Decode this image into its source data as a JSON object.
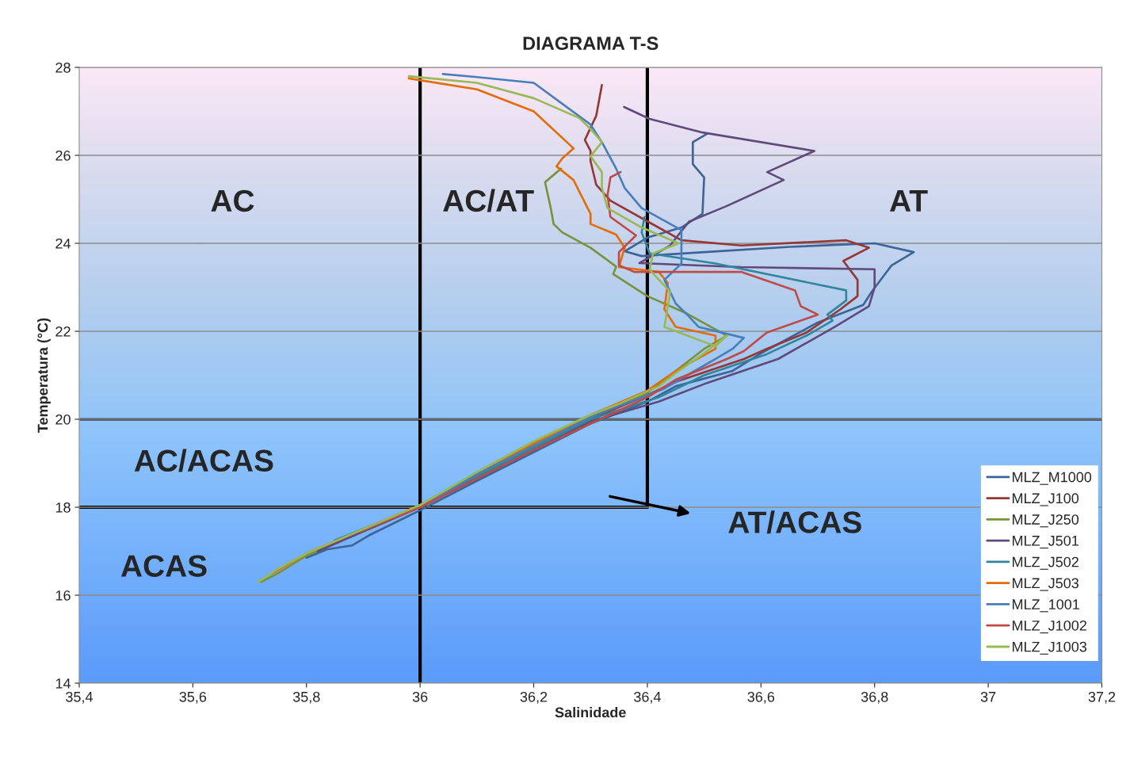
{
  "chart_data": {
    "type": "line",
    "title": "DIAGRAMA T-S",
    "xlabel": "Salinidade",
    "ylabel": "Temperatura (°C)",
    "xlim": [
      35.4,
      37.2
    ],
    "ylim": [
      14,
      28
    ],
    "xticks": [
      {
        "value": 35.4,
        "label": "35,4"
      },
      {
        "value": 35.6,
        "label": "35,6"
      },
      {
        "value": 35.8,
        "label": "35,8"
      },
      {
        "value": 36,
        "label": "36"
      },
      {
        "value": 36.2,
        "label": "36,2"
      },
      {
        "value": 36.4,
        "label": "36,4"
      },
      {
        "value": 36.6,
        "label": "36,6"
      },
      {
        "value": 36.8,
        "label": "36,8"
      },
      {
        "value": 37,
        "label": "37"
      },
      {
        "value": 37.2,
        "label": "37,2"
      }
    ],
    "yticks": [
      14,
      16,
      18,
      20,
      22,
      24,
      26,
      28
    ],
    "grid": "y",
    "legend": "lower right",
    "series": [
      {
        "name": "MLZ_M1000",
        "color": "#3c6496",
        "x": [
          36.505,
          36.48,
          36.48,
          36.5,
          36.497,
          36.46,
          36.4,
          36.36,
          36.39,
          36.5,
          36.65,
          36.8,
          36.869,
          36.83,
          36.795,
          36.78,
          36.7,
          36.6,
          36.55,
          36.45,
          36.4,
          36.3,
          36.2,
          36.1,
          36.0,
          35.91,
          35.88,
          35.836,
          35.8
        ],
        "values": [
          26.49,
          26.3,
          25.8,
          25.5,
          24.67,
          24.36,
          24.13,
          23.82,
          23.71,
          23.8,
          23.92,
          24.0,
          23.8,
          23.5,
          22.9,
          22.6,
          22.2,
          21.5,
          21.1,
          20.75,
          20.4,
          19.9,
          19.25,
          18.6,
          17.93,
          17.36,
          17.13,
          17.04,
          16.85
        ]
      },
      {
        "name": "MLZ_J100",
        "color": "#953735",
        "x": [
          36.32,
          36.31,
          36.29,
          36.3,
          36.3,
          36.31,
          36.335,
          36.4,
          36.46,
          36.565,
          36.75,
          36.79,
          36.745,
          36.77,
          36.77,
          36.74,
          36.68,
          36.61,
          36.57,
          36.45,
          36.4,
          36.3,
          36.2,
          36.1,
          36.0,
          35.9,
          35.83
        ],
        "values": [
          27.6,
          26.9,
          26.35,
          26.1,
          25.87,
          25.33,
          24.97,
          24.5,
          24.07,
          23.95,
          24.07,
          23.9,
          23.6,
          23.17,
          22.8,
          22.5,
          21.97,
          21.6,
          21.37,
          20.85,
          20.55,
          20.0,
          19.35,
          18.7,
          18.02,
          17.5,
          17.1
        ]
      },
      {
        "name": "MLZ_J250",
        "color": "#77933c",
        "x": [
          36.248,
          36.22,
          36.23,
          36.235,
          36.25,
          36.3,
          36.345,
          36.34,
          36.4,
          36.47,
          36.54,
          36.5,
          36.45,
          36.4,
          36.3,
          36.2,
          36.1,
          36.0,
          35.9,
          35.8,
          35.75,
          35.72
        ],
        "values": [
          25.7,
          25.39,
          24.8,
          24.44,
          24.25,
          23.9,
          23.47,
          23.3,
          22.8,
          22.4,
          21.9,
          21.6,
          21.1,
          20.6,
          20.05,
          19.4,
          18.7,
          18.0,
          17.45,
          16.9,
          16.5,
          16.3
        ]
      },
      {
        "name": "MLZ_J501",
        "color": "#604a7b",
        "x": [
          36.359,
          36.404,
          36.497,
          36.694,
          36.611,
          36.64,
          36.54,
          36.473,
          36.44,
          36.386,
          36.565,
          36.8,
          36.8,
          36.79,
          36.73,
          36.63,
          36.5,
          36.42,
          36.3,
          36.2,
          36.1,
          36.0,
          35.9,
          35.82
        ],
        "values": [
          27.1,
          26.83,
          26.52,
          26.1,
          25.62,
          25.44,
          24.85,
          24.49,
          23.95,
          23.55,
          23.46,
          23.41,
          23.0,
          22.57,
          22.1,
          21.37,
          20.8,
          20.4,
          19.95,
          19.3,
          18.65,
          18.0,
          17.45,
          17.0
        ]
      },
      {
        "name": "MLZ_J502",
        "color": "#31859c",
        "x": [
          36.395,
          36.39,
          36.404,
          36.52,
          36.75,
          36.75,
          36.717,
          36.726,
          36.68,
          36.61,
          36.5,
          36.42,
          36.3,
          36.2,
          36.1,
          36.0,
          35.9,
          35.85
        ],
        "values": [
          24.6,
          24.25,
          23.77,
          23.54,
          22.93,
          22.7,
          22.38,
          22.24,
          21.9,
          21.48,
          21.0,
          20.5,
          20.0,
          19.35,
          18.7,
          18.02,
          17.5,
          17.25
        ]
      },
      {
        "name": "MLZ_J503",
        "color": "#e46c0a",
        "x": [
          35.98,
          36.1,
          36.2,
          36.27,
          36.25,
          36.24,
          36.27,
          36.3,
          36.3,
          36.345,
          36.36,
          36.35,
          36.42,
          36.436,
          36.43,
          36.45,
          36.52,
          36.52,
          36.45,
          36.4,
          36.3,
          36.2,
          36.1,
          36.0,
          35.9,
          35.8,
          35.74
        ],
        "values": [
          27.75,
          27.5,
          27.0,
          26.16,
          25.93,
          25.75,
          25.44,
          24.67,
          24.44,
          24.2,
          23.9,
          23.46,
          23.35,
          23.1,
          22.5,
          22.1,
          21.9,
          21.6,
          21.1,
          20.65,
          20.1,
          19.45,
          18.75,
          18.05,
          17.5,
          16.95,
          16.5
        ]
      },
      {
        "name": "MLZ_1001",
        "color": "#4a7ebb",
        "x": [
          36.04,
          36.1,
          36.2,
          36.3,
          36.32,
          36.345,
          36.36,
          36.39,
          36.46,
          36.46,
          36.43,
          36.45,
          36.47,
          36.49,
          36.57,
          36.55,
          36.52,
          36.47,
          36.43,
          36.35,
          36.3,
          36.2,
          36.1,
          36.0,
          35.9,
          35.85
        ],
        "values": [
          27.85,
          27.78,
          27.65,
          26.7,
          26.3,
          25.7,
          25.26,
          24.8,
          24.3,
          23.54,
          23.17,
          22.63,
          22.38,
          22.1,
          21.85,
          21.6,
          21.37,
          21.0,
          20.7,
          20.3,
          20.05,
          19.4,
          18.75,
          18.0,
          17.5,
          17.25
        ]
      },
      {
        "name": "MLZ_J1002",
        "color": "#be4b48",
        "x": [
          36.353,
          36.335,
          36.33,
          36.335,
          36.38,
          36.35,
          36.35,
          36.377,
          36.565,
          36.66,
          36.67,
          36.7,
          36.61,
          36.57,
          36.54,
          36.45,
          36.4,
          36.3,
          36.2,
          36.1,
          36.0,
          35.895
        ],
        "values": [
          25.62,
          25.5,
          25.1,
          24.6,
          24.18,
          23.8,
          23.5,
          23.35,
          23.35,
          22.93,
          22.57,
          22.38,
          21.97,
          21.55,
          21.37,
          20.9,
          20.5,
          19.9,
          19.3,
          18.65,
          18.0,
          17.45
        ]
      },
      {
        "name": "MLZ_J1003",
        "color": "#98b954",
        "x": [
          35.98,
          36.1,
          36.2,
          36.28,
          36.3,
          36.32,
          36.3,
          36.32,
          36.32,
          36.33,
          36.39,
          36.455,
          36.41,
          36.404,
          36.44,
          36.436,
          36.43,
          36.45,
          36.52,
          36.54,
          36.5,
          36.45,
          36.42,
          36.35,
          36.3,
          36.2,
          36.1,
          36.0,
          35.9,
          35.8,
          35.75,
          35.715
        ],
        "values": [
          27.8,
          27.65,
          27.3,
          26.85,
          26.6,
          26.3,
          25.98,
          25.62,
          25.26,
          24.8,
          24.36,
          24.0,
          23.77,
          23.4,
          22.9,
          22.56,
          22.1,
          22.0,
          21.66,
          21.9,
          21.5,
          21.05,
          20.75,
          20.35,
          20.1,
          19.5,
          18.8,
          18.05,
          17.5,
          16.95,
          16.6,
          16.3
        ]
      },
      {
        "color": "#000000",
        "x": [
          36,
          36
        ],
        "values": [
          14,
          28
        ]
      },
      {
        "color": "#000000",
        "x": [
          36.4,
          36.4
        ],
        "values": [
          28,
          18
        ]
      },
      {
        "color": "#000000",
        "x": [
          35.4,
          36.4
        ],
        "values": [
          18,
          18
        ]
      }
    ],
    "ref_lines": [
      {
        "axis": "y",
        "value": 20,
        "color": "#000000"
      }
    ],
    "annotations": [
      "AC",
      "AC/AT",
      "AT",
      "AC/ACAS",
      "ACAS",
      "AT/ACAS"
    ]
  }
}
